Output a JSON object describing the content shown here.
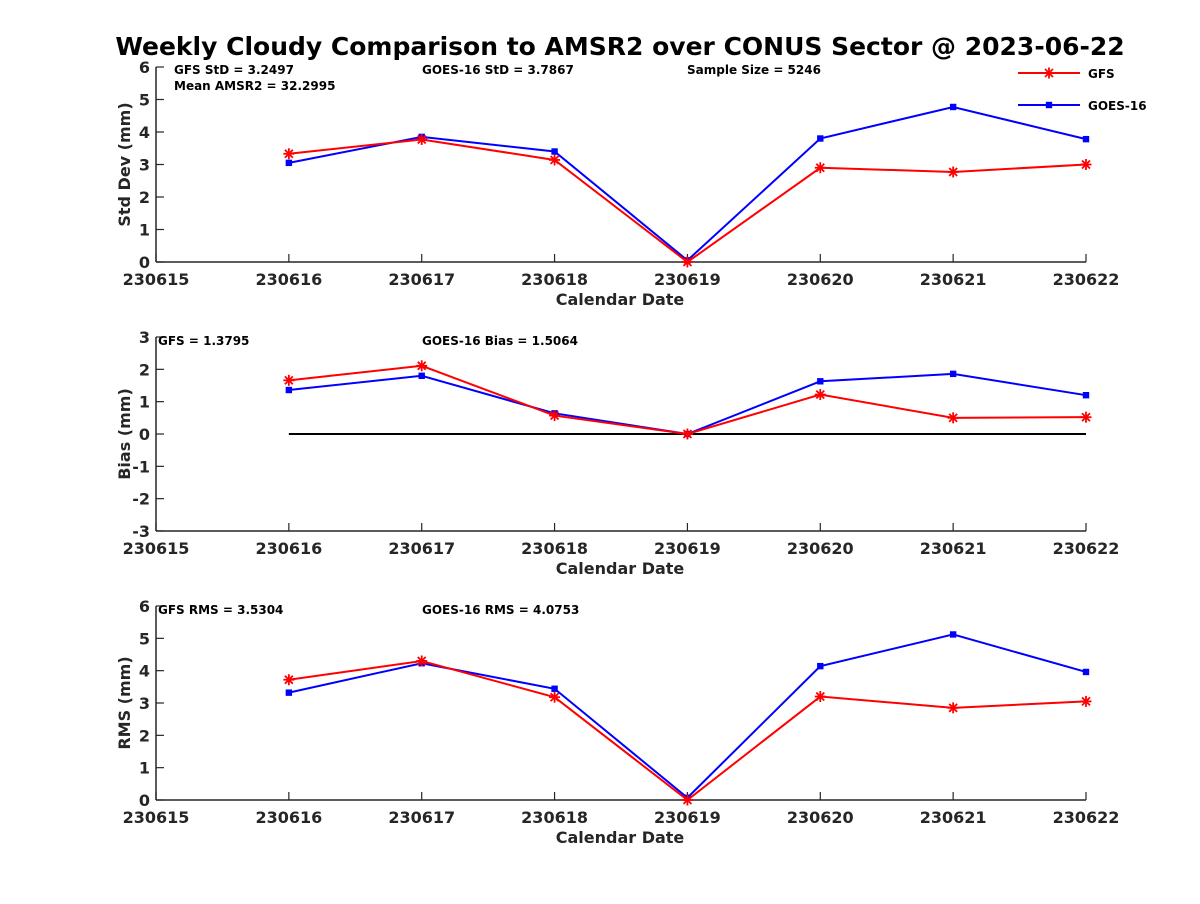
{
  "title": "Weekly Cloudy Comparison to AMSR2 over CONUS Sector @ 2023-06-22",
  "legend": {
    "placement": "top-right",
    "entries": [
      {
        "name": "GFS",
        "color": "#ff0000",
        "marker": "asterisk"
      },
      {
        "name": "GOES-16",
        "color": "#0000ff",
        "marker": "square"
      }
    ]
  },
  "chart_data": [
    {
      "type": "line",
      "id": "stddev",
      "title": "",
      "xlabel": "Calendar Date",
      "ylabel": "Std Dev (mm)",
      "x_ticks": [
        "230615",
        "230616",
        "230617",
        "230618",
        "230619",
        "230620",
        "230621",
        "230622"
      ],
      "x_values": [
        230616,
        230617,
        230618,
        230619,
        230620,
        230621,
        230622
      ],
      "xlim": [
        230615,
        230622
      ],
      "ylim": [
        0,
        6
      ],
      "y_ticks": [
        "0",
        "1",
        "2",
        "3",
        "4",
        "5",
        "6"
      ],
      "zero_line": false,
      "annotations": [
        "GFS StD = 3.2497",
        "GOES-16 StD = 3.7867",
        "Sample Size = 5246",
        "Mean AMSR2 = 32.2995"
      ],
      "series": [
        {
          "name": "GFS",
          "color": "#ff0000",
          "marker": "asterisk",
          "values": [
            3.33,
            3.77,
            3.14,
            0.0,
            2.9,
            2.77,
            3.0
          ]
        },
        {
          "name": "GOES-16",
          "color": "#0000ff",
          "marker": "square",
          "values": [
            3.05,
            3.85,
            3.4,
            0.05,
            3.8,
            4.77,
            3.78
          ]
        }
      ]
    },
    {
      "type": "line",
      "id": "bias",
      "title": "",
      "xlabel": "Calendar Date",
      "ylabel": "Bias (mm)",
      "x_ticks": [
        "230615",
        "230616",
        "230617",
        "230618",
        "230619",
        "230620",
        "230621",
        "230622"
      ],
      "x_values": [
        230616,
        230617,
        230618,
        230619,
        230620,
        230621,
        230622
      ],
      "xlim": [
        230615,
        230622
      ],
      "ylim": [
        -3,
        3
      ],
      "y_ticks": [
        "-3",
        "-2",
        "-1",
        "0",
        "1",
        "2",
        "3"
      ],
      "zero_line": true,
      "annotations": [
        "GFS = 1.3795",
        "GOES-16 Bias  = 1.5064"
      ],
      "series": [
        {
          "name": "GFS",
          "color": "#ff0000",
          "marker": "asterisk",
          "values": [
            1.66,
            2.11,
            0.57,
            0.0,
            1.22,
            0.5,
            0.52
          ]
        },
        {
          "name": "GOES-16",
          "color": "#0000ff",
          "marker": "square",
          "values": [
            1.36,
            1.8,
            0.64,
            0.0,
            1.63,
            1.86,
            1.2
          ]
        }
      ]
    },
    {
      "type": "line",
      "id": "rms",
      "title": "",
      "xlabel": "Calendar Date",
      "ylabel": "RMS (mm)",
      "x_ticks": [
        "230615",
        "230616",
        "230617",
        "230618",
        "230619",
        "230620",
        "230621",
        "230622"
      ],
      "x_values": [
        230616,
        230617,
        230618,
        230619,
        230620,
        230621,
        230622
      ],
      "xlim": [
        230615,
        230622
      ],
      "ylim": [
        0,
        6
      ],
      "y_ticks": [
        "0",
        "1",
        "2",
        "3",
        "4",
        "5",
        "6"
      ],
      "zero_line": false,
      "annotations": [
        "GFS RMS = 3.5304",
        "GOES-16 RMS = 4.0753"
      ],
      "series": [
        {
          "name": "GFS",
          "color": "#ff0000",
          "marker": "asterisk",
          "values": [
            3.72,
            4.3,
            3.18,
            0.0,
            3.2,
            2.85,
            3.05
          ]
        },
        {
          "name": "GOES-16",
          "color": "#0000ff",
          "marker": "square",
          "values": [
            3.32,
            4.23,
            3.44,
            0.07,
            4.14,
            5.12,
            3.96
          ]
        }
      ]
    }
  ]
}
